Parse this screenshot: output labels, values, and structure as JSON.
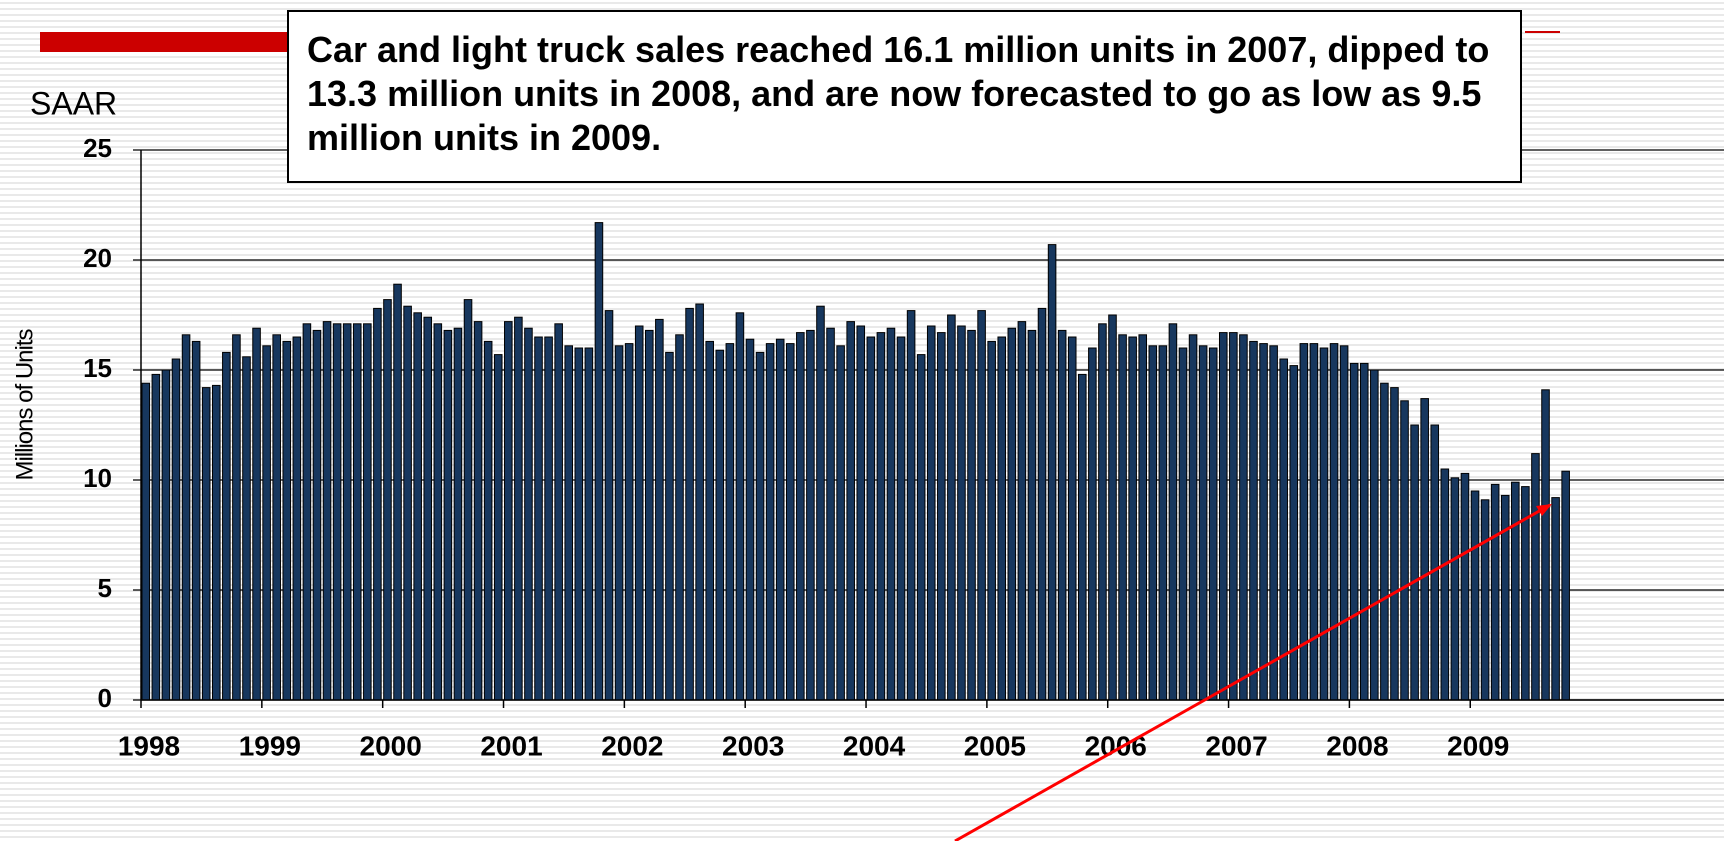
{
  "chart_data": {
    "type": "bar",
    "annotation": "Car and light truck sales reached 16.1 million units in 2007, dipped to 13.3 million units in 2008, and are now forecasted to go as low as 9.5 million units in 2009.",
    "unit_label": "SAAR",
    "ylabel": "Millions of Units",
    "color": "#17375e",
    "grid": true,
    "ylim": [
      0,
      25
    ],
    "yticks": [
      0,
      5,
      10,
      15,
      20,
      25
    ],
    "categories": [
      "1998",
      null,
      null,
      null,
      null,
      null,
      null,
      null,
      null,
      null,
      null,
      null,
      "1999",
      null,
      null,
      null,
      null,
      null,
      null,
      null,
      null,
      null,
      null,
      null,
      "2000",
      null,
      null,
      null,
      null,
      null,
      null,
      null,
      null,
      null,
      null,
      null,
      "2001",
      null,
      null,
      null,
      null,
      null,
      null,
      null,
      null,
      null,
      null,
      null,
      "2002",
      null,
      null,
      null,
      null,
      null,
      null,
      null,
      null,
      null,
      null,
      null,
      "2003",
      null,
      null,
      null,
      null,
      null,
      null,
      null,
      null,
      null,
      null,
      null,
      "2004",
      null,
      null,
      null,
      null,
      null,
      null,
      null,
      null,
      null,
      null,
      null,
      "2005",
      null,
      null,
      null,
      null,
      null,
      null,
      null,
      null,
      null,
      null,
      null,
      "2006",
      null,
      null,
      null,
      null,
      null,
      null,
      null,
      null,
      null,
      null,
      null,
      "2007",
      null,
      null,
      null,
      null,
      null,
      null,
      null,
      null,
      null,
      null,
      null,
      "2008",
      null,
      null,
      null,
      null,
      null,
      null,
      null,
      null,
      null,
      null,
      null,
      "2009",
      null,
      null,
      null,
      null,
      null,
      null,
      null,
      null,
      null
    ],
    "values": [
      14.4,
      14.8,
      15.0,
      15.5,
      16.6,
      16.3,
      14.2,
      14.3,
      15.8,
      16.6,
      15.6,
      16.9,
      16.1,
      16.6,
      16.3,
      16.5,
      17.1,
      16.8,
      17.2,
      17.1,
      17.1,
      17.1,
      17.1,
      17.8,
      18.2,
      18.9,
      17.9,
      17.6,
      17.4,
      17.1,
      16.8,
      16.9,
      18.2,
      17.2,
      16.3,
      15.7,
      17.2,
      17.4,
      16.9,
      16.5,
      16.5,
      17.1,
      16.1,
      16.0,
      16.0,
      21.7,
      17.7,
      16.1,
      16.2,
      17.0,
      16.8,
      17.3,
      15.8,
      16.6,
      17.8,
      18.0,
      16.3,
      15.9,
      16.2,
      17.6,
      16.4,
      15.8,
      16.2,
      16.4,
      16.2,
      16.7,
      16.8,
      17.9,
      16.9,
      16.1,
      17.2,
      17.0,
      16.5,
      16.7,
      16.9,
      16.5,
      17.7,
      15.7,
      17.0,
      16.7,
      17.5,
      17.0,
      16.8,
      17.7,
      16.3,
      16.5,
      16.9,
      17.2,
      16.8,
      17.8,
      20.7,
      16.8,
      16.5,
      14.8,
      16.0,
      17.1,
      17.5,
      16.6,
      16.5,
      16.6,
      16.1,
      16.1,
      17.1,
      16.0,
      16.6,
      16.1,
      16.0,
      16.7,
      16.7,
      16.6,
      16.3,
      16.2,
      16.1,
      15.5,
      15.2,
      16.2,
      16.2,
      16.0,
      16.2,
      16.1,
      15.3,
      15.3,
      15.0,
      14.4,
      14.2,
      13.6,
      12.5,
      13.7,
      12.5,
      10.5,
      10.1,
      10.3,
      9.5,
      9.1,
      9.8,
      9.3,
      9.9,
      9.7,
      11.2,
      14.1,
      9.2,
      10.4
    ]
  }
}
